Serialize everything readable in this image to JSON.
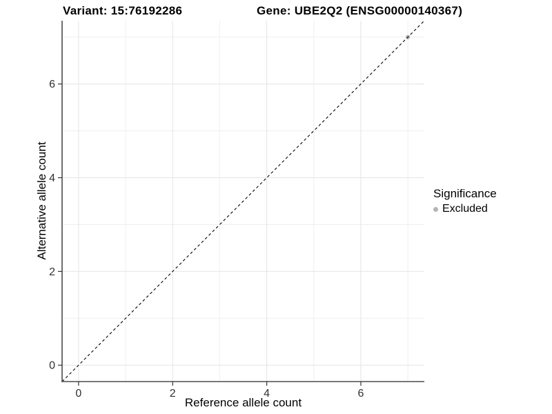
{
  "figure": {
    "title_left": "Variant: 15:76192286",
    "title_right": "Gene: UBE2Q2 (ENSG00000140367)"
  },
  "chart_data": {
    "type": "scatter",
    "title": "Variant: 15:76192286   Gene: UBE2Q2 (ENSG00000140367)",
    "xlabel": "Reference allele count",
    "ylabel": "Alternative allele count",
    "xlim": [
      -0.35,
      7.35
    ],
    "ylim": [
      -0.35,
      7.35
    ],
    "xticks": [
      0,
      2,
      4,
      6
    ],
    "yticks": [
      0,
      2,
      4,
      6
    ],
    "minor_gridlines_x": [
      1,
      3,
      5,
      7
    ],
    "minor_gridlines_y": [
      1,
      3,
      5,
      7
    ],
    "grid": "major+minor",
    "series": [
      {
        "name": "Excluded",
        "color": "#b5b5b5",
        "points": [
          {
            "x": 7,
            "y": 7
          }
        ]
      }
    ],
    "reference_line": {
      "type": "identity",
      "slope": 1,
      "intercept": 0,
      "style": "dashed",
      "color": "#000000"
    },
    "legend": {
      "title": "Significance",
      "position": "right",
      "entries": [
        {
          "label": "Excluded",
          "color": "#b5b5b5"
        }
      ]
    },
    "colors": {
      "background": "#ffffff",
      "grid_major": "#e4e4e4",
      "grid_minor": "#efefef",
      "axis_line": "#4a4a4a",
      "tick_mark": "#333333",
      "tick_label": "#303030",
      "text": "#000000"
    }
  }
}
